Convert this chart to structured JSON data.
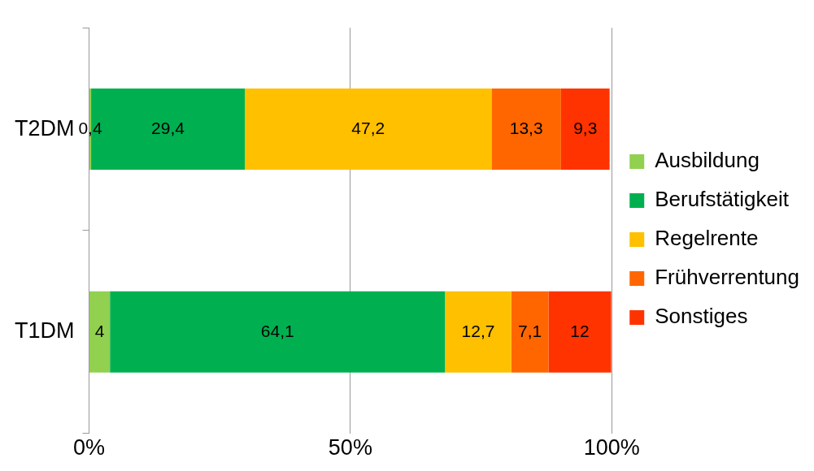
{
  "chart_data": {
    "type": "bar",
    "orientation": "horizontal",
    "stacked": true,
    "categories": [
      "T2DM",
      "T1DM"
    ],
    "series": [
      {
        "name": "Ausbildung",
        "color": "#92d050",
        "values": [
          0.4,
          4
        ],
        "value_labels": [
          "0,4",
          "4"
        ]
      },
      {
        "name": "Berufstätigkeit",
        "color": "#00b050",
        "values": [
          29.4,
          64.1
        ],
        "value_labels": [
          "29,4",
          "64,1"
        ]
      },
      {
        "name": "Regelrente",
        "color": "#ffc000",
        "values": [
          47.2,
          12.7
        ],
        "value_labels": [
          "47,2",
          "12,7"
        ]
      },
      {
        "name": "Frühverrentung",
        "color": "#ff6600",
        "values": [
          13.3,
          7.1
        ],
        "value_labels": [
          "13,3",
          "7,1"
        ]
      },
      {
        "name": "Sonstiges",
        "color": "#ff3300",
        "values": [
          9.3,
          12
        ],
        "value_labels": [
          "9,3",
          "12"
        ]
      }
    ],
    "xlim": [
      0,
      100
    ],
    "xticks": [
      {
        "value": 0,
        "label": "0%"
      },
      {
        "value": 50,
        "label": "50%"
      },
      {
        "value": 100,
        "label": "100%"
      }
    ],
    "grid": "x",
    "legend": "right"
  }
}
